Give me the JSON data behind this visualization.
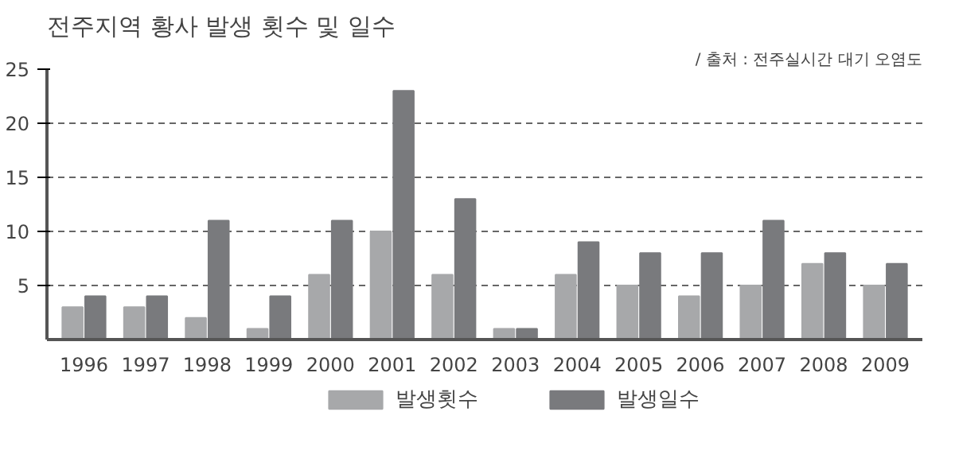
{
  "chart_data": {
    "type": "bar",
    "title": "전주지역 황사 발생 횟수 및 일수",
    "annotations": [
      "/ 출처 : 전주실시간 대기 오염도"
    ],
    "categories": [
      "1996",
      "1997",
      "1998",
      "1999",
      "2000",
      "2001",
      "2002",
      "2003",
      "2004",
      "2005",
      "2006",
      "2007",
      "2008",
      "2009"
    ],
    "series": [
      {
        "name": "발생횟수",
        "color": "#a7a8aa",
        "values": [
          3,
          3,
          2,
          1,
          6,
          10,
          6,
          1,
          6,
          5,
          4,
          5,
          7,
          5
        ]
      },
      {
        "name": "발생일수",
        "color": "#797a7d",
        "values": [
          4,
          4,
          11,
          4,
          11,
          23,
          13,
          1,
          9,
          8,
          8,
          11,
          8,
          7
        ]
      }
    ],
    "ylim": [
      0,
      25
    ],
    "yticks": [
      5,
      10,
      15,
      20,
      25
    ],
    "grid": "y",
    "legend": "bottom"
  }
}
